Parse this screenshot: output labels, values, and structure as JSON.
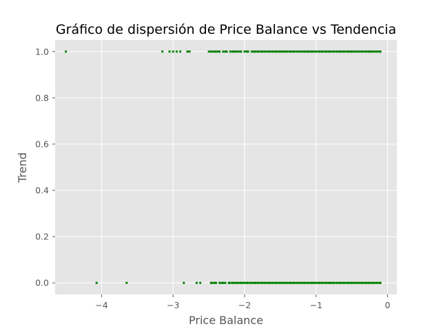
{
  "chart_data": {
    "type": "scatter",
    "title": "Gráfico de dispersión de Price Balance vs Tendencia",
    "xlabel": "Price Balance",
    "ylabel": "Trend",
    "xlim": [
      -4.65,
      0.13
    ],
    "ylim": [
      -0.05,
      1.05
    ],
    "xticks": [
      -4,
      -3,
      -2,
      -1,
      0
    ],
    "xtick_labels": [
      "−4",
      "−3",
      "−2",
      "−1",
      "0"
    ],
    "yticks": [
      0.0,
      0.2,
      0.4,
      0.6,
      0.8,
      1.0
    ],
    "ytick_labels": [
      "0.0",
      "0.2",
      "0.4",
      "0.6",
      "0.8",
      "1.0"
    ],
    "grid": true,
    "style": "ggplot",
    "marker_color": "#008000",
    "series": [
      {
        "trend_value": 1.0,
        "x": [
          -4.5,
          -3.15,
          -3.05,
          -3.0,
          -2.95,
          -2.9,
          -2.8,
          -2.77,
          -2.5,
          -2.47,
          -2.45,
          -2.42,
          -2.4,
          -2.37,
          -2.35,
          -2.3,
          -2.27,
          -2.25,
          -2.2,
          -2.17,
          -2.15,
          -2.12,
          -2.1,
          -2.07,
          -2.05,
          -2.0,
          -1.97,
          -1.95,
          -1.9,
          -1.87,
          -1.85,
          -1.82,
          -1.8,
          -1.77,
          -1.75,
          -1.72,
          -1.7,
          -1.67,
          -1.65,
          -1.62,
          -1.6,
          -1.57,
          -1.55,
          -1.52,
          -1.5,
          -1.47,
          -1.45,
          -1.42,
          -1.4,
          -1.37,
          -1.35,
          -1.32,
          -1.3,
          -1.27,
          -1.25,
          -1.22,
          -1.2,
          -1.17,
          -1.15,
          -1.12,
          -1.1,
          -1.07,
          -1.05,
          -1.02,
          -1.0,
          -0.97,
          -0.95,
          -0.92,
          -0.9,
          -0.87,
          -0.85,
          -0.82,
          -0.8,
          -0.77,
          -0.75,
          -0.72,
          -0.7,
          -0.67,
          -0.65,
          -0.62,
          -0.6,
          -0.57,
          -0.55,
          -0.52,
          -0.5,
          -0.47,
          -0.45,
          -0.42,
          -0.4,
          -0.37,
          -0.35,
          -0.32,
          -0.3,
          -0.27,
          -0.25,
          -0.22,
          -0.2,
          -0.17,
          -0.15,
          -0.12,
          -0.1
        ]
      },
      {
        "trend_value": 0.0,
        "x": [
          -4.07,
          -3.65,
          -2.85,
          -2.67,
          -2.62,
          -2.47,
          -2.45,
          -2.42,
          -2.4,
          -2.35,
          -2.32,
          -2.3,
          -2.27,
          -2.22,
          -2.2,
          -2.17,
          -2.15,
          -2.12,
          -2.1,
          -2.07,
          -2.05,
          -2.02,
          -2.0,
          -1.97,
          -1.95,
          -1.92,
          -1.9,
          -1.87,
          -1.85,
          -1.82,
          -1.8,
          -1.77,
          -1.75,
          -1.72,
          -1.7,
          -1.67,
          -1.65,
          -1.62,
          -1.6,
          -1.57,
          -1.55,
          -1.52,
          -1.5,
          -1.47,
          -1.45,
          -1.42,
          -1.4,
          -1.37,
          -1.35,
          -1.32,
          -1.3,
          -1.27,
          -1.25,
          -1.22,
          -1.2,
          -1.17,
          -1.15,
          -1.12,
          -1.1,
          -1.07,
          -1.05,
          -1.02,
          -1.0,
          -0.97,
          -0.95,
          -0.92,
          -0.9,
          -0.87,
          -0.85,
          -0.82,
          -0.8,
          -0.77,
          -0.75,
          -0.72,
          -0.7,
          -0.67,
          -0.65,
          -0.62,
          -0.6,
          -0.57,
          -0.55,
          -0.52,
          -0.5,
          -0.47,
          -0.45,
          -0.42,
          -0.4,
          -0.37,
          -0.35,
          -0.32,
          -0.3,
          -0.27,
          -0.25,
          -0.22,
          -0.2,
          -0.17,
          -0.15,
          -0.12,
          -0.1
        ]
      }
    ]
  }
}
